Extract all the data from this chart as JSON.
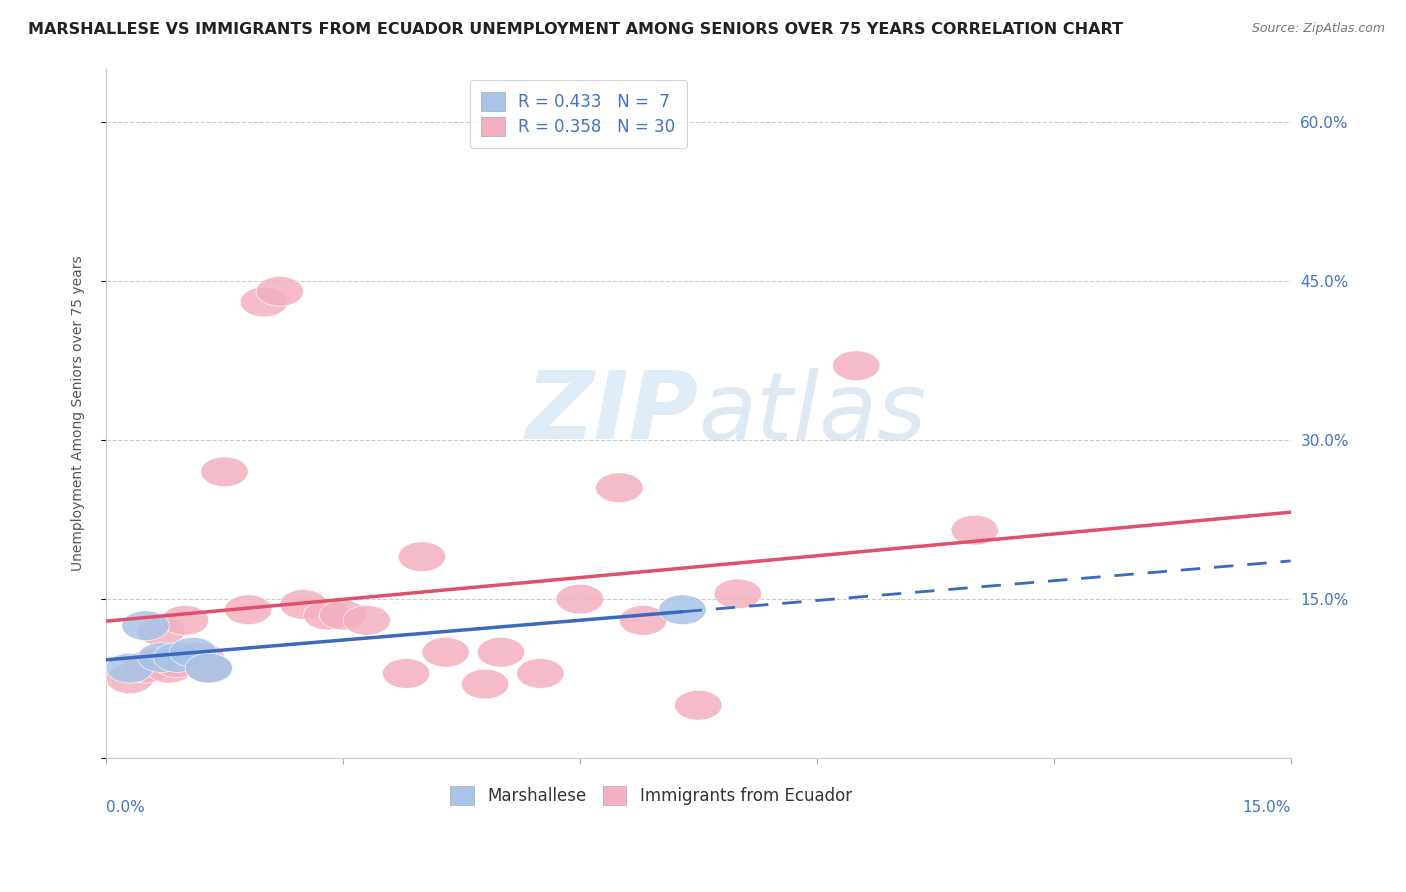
{
  "title": "MARSHALLESE VS IMMIGRANTS FROM ECUADOR UNEMPLOYMENT AMONG SENIORS OVER 75 YEARS CORRELATION CHART",
  "source": "Source: ZipAtlas.com",
  "ylabel": "Unemployment Among Seniors over 75 years",
  "xmin": 0.0,
  "xmax": 0.15,
  "ymin": 0.0,
  "ymax": 0.65,
  "yticks": [
    0.0,
    0.15,
    0.3,
    0.45,
    0.6
  ],
  "right_ytick_labels": [
    "",
    "15.0%",
    "30.0%",
    "45.0%",
    "60.0%"
  ],
  "marshallese_color": "#a8c4e8",
  "ecuador_color": "#f4b0c0",
  "marshallese_line_color": "#3a6abf",
  "ecuador_line_color": "#e0506a",
  "watermark_color": "#ccddf0",
  "marshallese_x": [
    0.003,
    0.005,
    0.007,
    0.009,
    0.011,
    0.013,
    0.073
  ],
  "marshallese_y": [
    0.085,
    0.125,
    0.095,
    0.095,
    0.1,
    0.085,
    0.14
  ],
  "ecuador_x": [
    0.003,
    0.005,
    0.006,
    0.007,
    0.008,
    0.009,
    0.01,
    0.012,
    0.013,
    0.015,
    0.018,
    0.02,
    0.022,
    0.025,
    0.028,
    0.03,
    0.033,
    0.038,
    0.04,
    0.043,
    0.048,
    0.05,
    0.055,
    0.06,
    0.065,
    0.068,
    0.075,
    0.08,
    0.095,
    0.11
  ],
  "ecuador_y": [
    0.075,
    0.085,
    0.09,
    0.12,
    0.085,
    0.09,
    0.13,
    0.095,
    0.085,
    0.27,
    0.14,
    0.43,
    0.44,
    0.145,
    0.135,
    0.135,
    0.13,
    0.08,
    0.19,
    0.1,
    0.07,
    0.1,
    0.08,
    0.15,
    0.255,
    0.13,
    0.05,
    0.155,
    0.37,
    0.215
  ],
  "title_fontsize": 11.5,
  "axis_label_fontsize": 10,
  "tick_fontsize": 11,
  "legend_fontsize": 12
}
